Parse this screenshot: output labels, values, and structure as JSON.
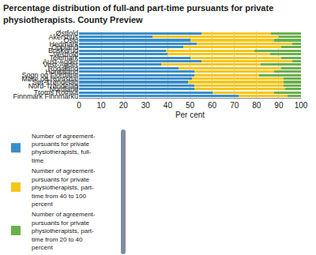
{
  "chart_data": {
    "type": "bar",
    "orientation": "horizontal",
    "stacked": true,
    "grid": true,
    "legend": "bottom",
    "title": "Percentage distribution of full-and part-time pursuants for private physiotherapists. County Preview",
    "x_label": "Per cent",
    "categories": [
      "Østfold",
      "Akershus",
      "Oslo",
      "Hedmark",
      "Oppland",
      "Buskerud",
      "Vestfold",
      "Telemark",
      "Aust-Agder",
      "Vest-Agder",
      "Rogaland",
      "Hordaland",
      "Sogn og Fjordane",
      "Møre og Romsdal",
      "Sør-Trøndelag",
      "Nord-Trøndelag",
      "Nordland",
      "Troms Romsa",
      "Finnmark Finnmárku"
    ],
    "series": [
      {
        "name": "Number of agreement-pursuants for private physiotherapists, full-time",
        "color": "#3a8ec8",
        "values": [
          55,
          33,
          50,
          53,
          47,
          39,
          40,
          50,
          55,
          37,
          45,
          52,
          52,
          51,
          49,
          52,
          52,
          60,
          72
        ]
      },
      {
        "name": "Number of agreement-pursuants for private physiotherapists, part-time from 40 to 100 percent",
        "color": "#f5c61b",
        "values": [
          31.5,
          57,
          38,
          43,
          44,
          40,
          46,
          41,
          41,
          45,
          46,
          36,
          29,
          41,
          43,
          40,
          41,
          28,
          22
        ]
      },
      {
        "name": "Number of agreement-pursuants for private physiotherapists, part-time from 20 to 40 percent",
        "color": "#6ab04c",
        "values": [
          13.5,
          10,
          12,
          4,
          9,
          21,
          14,
          9,
          4,
          18,
          9,
          12,
          19,
          8,
          8,
          8,
          7,
          12,
          6
        ]
      }
    ],
    "xlim": [
      0,
      100
    ],
    "xticks": [
      0,
      10,
      20,
      30,
      40,
      50,
      60,
      70,
      80,
      90,
      100
    ]
  }
}
